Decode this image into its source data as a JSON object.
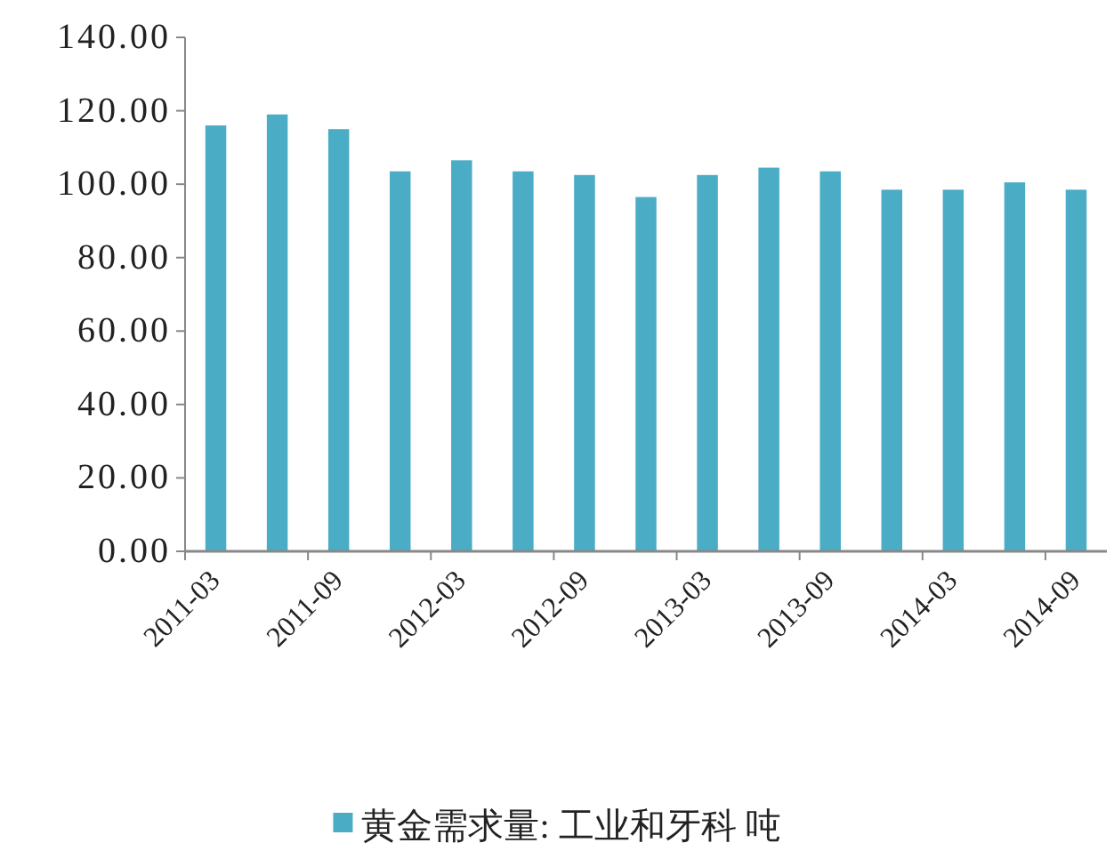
{
  "chart_data": {
    "type": "bar",
    "categories": [
      "2011-03",
      null,
      "2011-09",
      null,
      "2012-03",
      null,
      "2012-09",
      null,
      "2013-03",
      null,
      "2013-09",
      null,
      "2014-03",
      null,
      "2014-09"
    ],
    "series": [
      {
        "name": "黄金需求量: 工业和牙科 吨",
        "color": "#4bacc6",
        "values": [
          116,
          119,
          115,
          103.5,
          106.5,
          103.5,
          102.5,
          96.5,
          102.5,
          104.5,
          103.5,
          98.5,
          98.5,
          100.5,
          98.5
        ]
      }
    ],
    "ylim": [
      0,
      140
    ],
    "yticks": [
      {
        "value": 0,
        "label": "0.00"
      },
      {
        "value": 20,
        "label": "20.00"
      },
      {
        "value": 40,
        "label": "40.00"
      },
      {
        "value": 60,
        "label": "60.00"
      },
      {
        "value": 80,
        "label": "80.00"
      },
      {
        "value": 100,
        "label": "100.00"
      },
      {
        "value": 120,
        "label": "120.00"
      },
      {
        "value": 140,
        "label": "140.00"
      }
    ],
    "grid": false,
    "legend": "bottom"
  }
}
